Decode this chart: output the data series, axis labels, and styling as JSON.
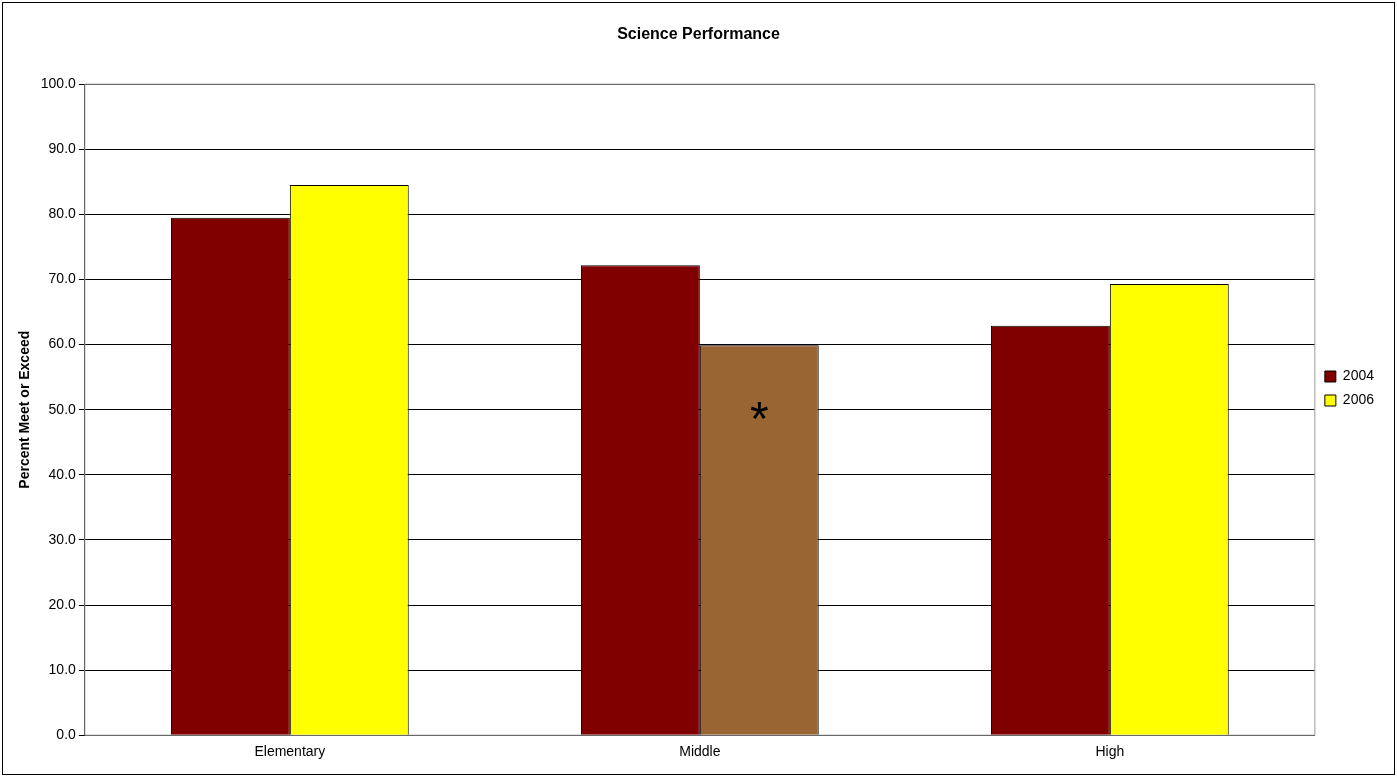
{
  "chart_data": {
    "type": "bar",
    "title": "Science Performance",
    "ylabel": "Percent Meet or Exceed",
    "categories": [
      "Elementary",
      "Middle",
      "High"
    ],
    "series": [
      {
        "name": "2004",
        "color": "#800000",
        "values": [
          79.5,
          72.2,
          62.9
        ]
      },
      {
        "name": "2006",
        "color": "#ffff00",
        "colors": [
          "#ffff00",
          "#996633",
          "#ffff00"
        ],
        "values": [
          84.5,
          59.9,
          69.3
        ]
      }
    ],
    "ylim": [
      0,
      100
    ],
    "yticks": [
      {
        "value": 0,
        "label": "0.0"
      },
      {
        "value": 10,
        "label": "10.0"
      },
      {
        "value": 20,
        "label": "20.0"
      },
      {
        "value": 30,
        "label": "30.0"
      },
      {
        "value": 40,
        "label": "40.0"
      },
      {
        "value": 50,
        "label": "50.0"
      },
      {
        "value": 60,
        "label": "60.0"
      },
      {
        "value": 70,
        "label": "70.0"
      },
      {
        "value": 80,
        "label": "80.0"
      },
      {
        "value": 90,
        "label": "90.0"
      },
      {
        "value": 100,
        "label": "100.0"
      }
    ],
    "grid": "y",
    "legend": "right",
    "annotations": [
      {
        "text": "*",
        "x": "Middle",
        "y": 50
      }
    ]
  }
}
